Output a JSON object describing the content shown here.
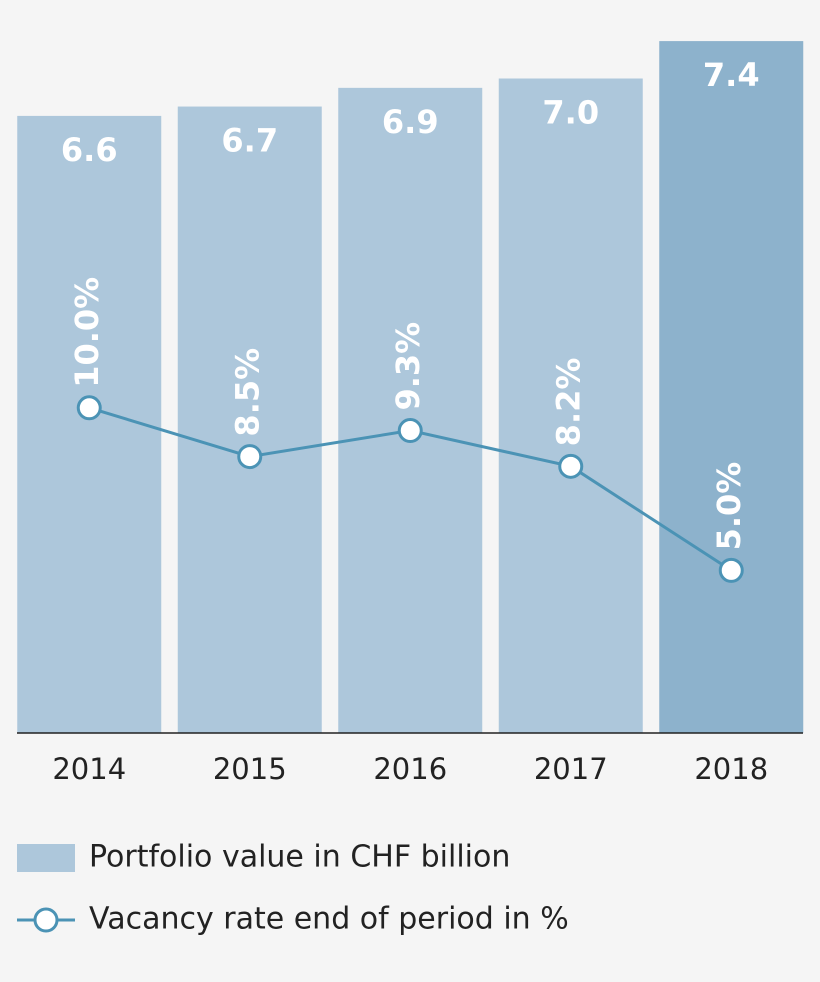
{
  "chart_data": {
    "type": "bar",
    "categories": [
      "2014",
      "2015",
      "2016",
      "2017",
      "2018"
    ],
    "series": [
      {
        "name": "Portfolio value in CHF billion",
        "type": "bar",
        "color": "#adc7db",
        "colors": [
          "#adc7db",
          "#adc7db",
          "#adc7db",
          "#adc7db",
          "#8db2cc"
        ],
        "values": [
          6.6,
          6.7,
          6.9,
          7.0,
          7.4
        ],
        "value_labels": [
          "6.6",
          "6.7",
          "6.9",
          "7.0",
          "7.4"
        ]
      },
      {
        "name": "Vacancy rate end of period in %",
        "type": "line",
        "axis": "y2",
        "color": "#4b93b5",
        "values": [
          10.0,
          8.5,
          9.3,
          8.2,
          5.0
        ],
        "value_labels": [
          "10.0%",
          "8.5%",
          "9.3%",
          "8.2%",
          "5.0%"
        ]
      }
    ],
    "ylim": [
      0,
      8
    ],
    "y2lim": [
      0,
      23
    ]
  }
}
